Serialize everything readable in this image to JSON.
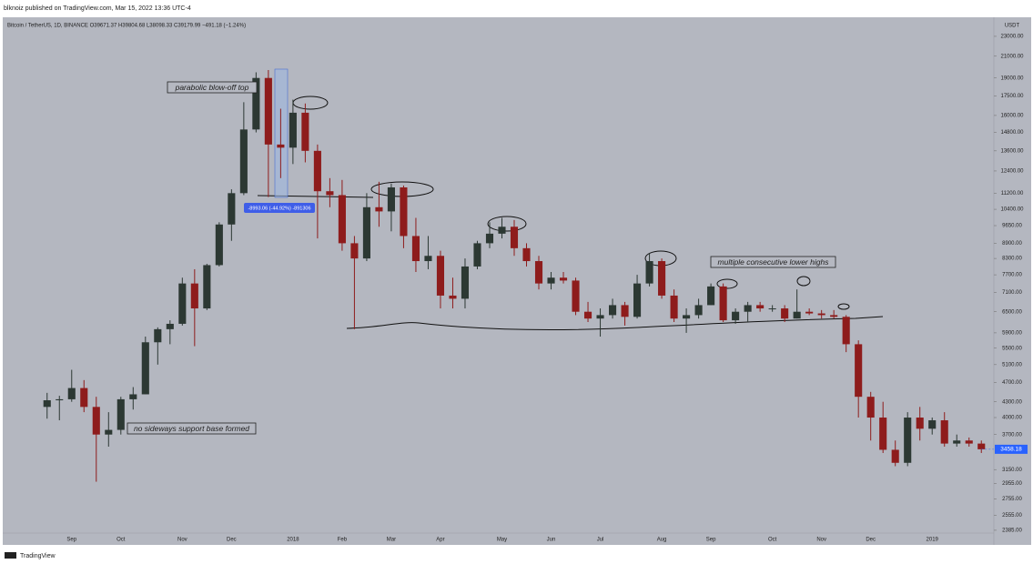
{
  "header": {
    "publisher": "blknoiz published on TradingView.com, Mar 15, 2022 13:36 UTC-4",
    "symbol": "Bitcoin / TetherUS, 1D, BINANCE  O39671.37  H39804.68  L38098.33  C39179.99  −491.18 (−1.24%)"
  },
  "chart_data": {
    "type": "candlestick",
    "y_unit": "USDT",
    "log_scale": true,
    "up_color": "#2c3833",
    "down_color": "#8e1c1c",
    "categories": [
      null,
      null,
      "Sep",
      null,
      null,
      null,
      "Oct",
      null,
      null,
      null,
      null,
      "Nov",
      null,
      null,
      null,
      "Dec",
      null,
      null,
      null,
      null,
      "2018",
      null,
      null,
      null,
      "Feb",
      null,
      null,
      null,
      "Mar",
      null,
      null,
      null,
      "Apr",
      null,
      null,
      null,
      null,
      "May",
      null,
      null,
      null,
      "Jun",
      null,
      null,
      null,
      "Jul",
      null,
      null,
      null,
      null,
      "Aug",
      null,
      null,
      null,
      "Sep",
      null,
      null,
      null,
      null,
      "Oct",
      null,
      null,
      null,
      "Nov",
      null,
      null,
      null,
      "Dec",
      null,
      null,
      null,
      null,
      "2019",
      null,
      null,
      null,
      null
    ],
    "open": [
      4200,
      4330,
      4350,
      4580,
      4200,
      3700,
      3780,
      4350,
      4450,
      5650,
      6000,
      6150,
      7400,
      6600,
      8050,
      9700,
      11200,
      15000,
      19000,
      14000,
      13800,
      16200,
      13600,
      11300,
      11100,
      8900,
      8300,
      10500,
      10300,
      11500,
      9200,
      8200,
      8400,
      7000,
      6900,
      8000,
      8900,
      9300,
      9600,
      8700,
      8200,
      7400,
      7600,
      7500,
      6500,
      6300,
      6400,
      6700,
      6350,
      7400,
      8200,
      7000,
      6300,
      6400,
      6700,
      7300,
      6250,
      6500,
      6700,
      6600,
      6600,
      6300,
      6500,
      6450,
      6400,
      6350,
      5600,
      4400,
      4000,
      3450,
      3250,
      4000,
      3800,
      3950,
      3550,
      3600,
      3550
    ],
    "high": [
      4480,
      4420,
      4980,
      4750,
      4400,
      4100,
      4400,
      4600,
      5800,
      6050,
      6250,
      7600,
      7900,
      8100,
      9800,
      11400,
      17000,
      19500,
      19700,
      16500,
      17200,
      16900,
      14000,
      12000,
      11900,
      9200,
      11200,
      11800,
      11700,
      11600,
      10000,
      9200,
      8600,
      7600,
      8300,
      9000,
      9800,
      10000,
      9900,
      8900,
      8400,
      7800,
      7800,
      7600,
      6800,
      6600,
      6900,
      6800,
      7700,
      8500,
      8300,
      7200,
      6600,
      6900,
      7400,
      7400,
      6600,
      6800,
      6800,
      6700,
      6700,
      7200,
      6600,
      6550,
      6550,
      6400,
      5700,
      4500,
      4300,
      3600,
      4100,
      4200,
      4000,
      4100,
      3700,
      3650,
      3600
    ],
    "low": [
      3980,
      3950,
      4300,
      4100,
      2980,
      3500,
      3700,
      4150,
      4450,
      5100,
      5600,
      6100,
      5550,
      6550,
      8000,
      9000,
      11100,
      14800,
      11000,
      12000,
      12800,
      12900,
      9100,
      10500,
      8600,
      6000,
      8200,
      9600,
      9400,
      8700,
      7800,
      7900,
      6600,
      6600,
      6600,
      7900,
      8700,
      9100,
      8400,
      8000,
      7200,
      7200,
      7400,
      6400,
      6200,
      5800,
      6300,
      6100,
      6300,
      7300,
      6900,
      6200,
      5900,
      6300,
      6700,
      6200,
      6150,
      6200,
      6500,
      6500,
      6200,
      6300,
      6400,
      6300,
      6300,
      5400,
      4000,
      3600,
      3400,
      3200,
      3200,
      3600,
      3700,
      3500,
      3500,
      3500,
      3400
    ],
    "close": [
      4330,
      4350,
      4580,
      4200,
      3700,
      3780,
      4350,
      4450,
      5650,
      6000,
      6150,
      7400,
      6600,
      8050,
      9700,
      11200,
      15000,
      19000,
      14000,
      13800,
      16200,
      13600,
      11300,
      11100,
      8900,
      8300,
      10500,
      10300,
      11500,
      9200,
      8200,
      8400,
      7000,
      6900,
      8000,
      8900,
      9300,
      9600,
      8700,
      8200,
      7400,
      7600,
      7500,
      6500,
      6300,
      6400,
      6700,
      6350,
      7400,
      8200,
      7000,
      6300,
      6400,
      6700,
      7300,
      6250,
      6500,
      6700,
      6600,
      6600,
      6300,
      6500,
      6450,
      6400,
      6350,
      5600,
      4400,
      4000,
      3450,
      3250,
      4000,
      3800,
      3950,
      3550,
      3600,
      3550,
      3458.18
    ],
    "ylim": [
      2230,
      25100
    ],
    "yticks": [
      {
        "value": 23000,
        "label": "23000.00"
      },
      {
        "value": 21000,
        "label": "21000.00"
      },
      {
        "value": 19000,
        "label": "19000.00"
      },
      {
        "value": 17500,
        "label": "17500.00"
      },
      {
        "value": 16000,
        "label": "16000.00"
      },
      {
        "value": 14800,
        "label": "14800.00"
      },
      {
        "value": 13600,
        "label": "13600.00"
      },
      {
        "value": 12400,
        "label": "12400.00"
      },
      {
        "value": 11200,
        "label": "11200.00"
      },
      {
        "value": 10400,
        "label": "10400.00"
      },
      {
        "value": 9650,
        "label": "9650.00"
      },
      {
        "value": 8900,
        "label": "8900.00"
      },
      {
        "value": 8300,
        "label": "8300.00"
      },
      {
        "value": 7700,
        "label": "7700.00"
      },
      {
        "value": 7100,
        "label": "7100.00"
      },
      {
        "value": 6500,
        "label": "6500.00"
      },
      {
        "value": 5900,
        "label": "5900.00"
      },
      {
        "value": 5500,
        "label": "5500.00"
      },
      {
        "value": 5100,
        "label": "5100.00"
      },
      {
        "value": 4700,
        "label": "4700.00"
      },
      {
        "value": 4300,
        "label": "4300.00"
      },
      {
        "value": 4000,
        "label": "4000.00"
      },
      {
        "value": 3700,
        "label": "3700.00"
      },
      {
        "value": 3150,
        "label": "3150.00"
      },
      {
        "value": 2955,
        "label": "2955.00"
      },
      {
        "value": 2755,
        "label": "2755.00"
      },
      {
        "value": 2555,
        "label": "2555.00"
      },
      {
        "value": 2385,
        "label": "2385.00"
      }
    ],
    "annotations": [
      "parabolic blow-off top",
      "no sideways support base formed",
      "multiple consecutive lower highs"
    ],
    "measure_label": "-8993.06 (-44.92%) -891306"
  },
  "footer": "TradingView"
}
